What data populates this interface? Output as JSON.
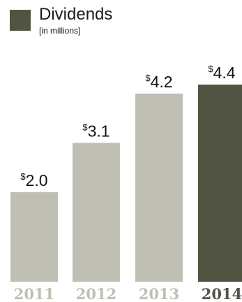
{
  "chart_data": {
    "type": "bar",
    "title": "Dividends",
    "subtitle": "[in millions]",
    "categories": [
      "2011",
      "2012",
      "2013",
      "2014"
    ],
    "values": [
      2.0,
      3.1,
      4.2,
      4.4
    ],
    "value_labels": [
      {
        "prefix": "$",
        "value": "2.0"
      },
      {
        "prefix": "$",
        "value": "3.1"
      },
      {
        "prefix": "$",
        "value": "4.2"
      },
      {
        "prefix": "$",
        "value": "4.4"
      }
    ],
    "ylim": [
      0,
      4.4
    ],
    "highlight_index": 3,
    "grid": false,
    "legend": "top-left",
    "colors": {
      "default_bar": "#c0bfb4",
      "highlight_bar": "#525443",
      "default_tick": "#c0bfb4",
      "highlight_tick": "#525443",
      "legend_swatch": "#525443"
    }
  }
}
